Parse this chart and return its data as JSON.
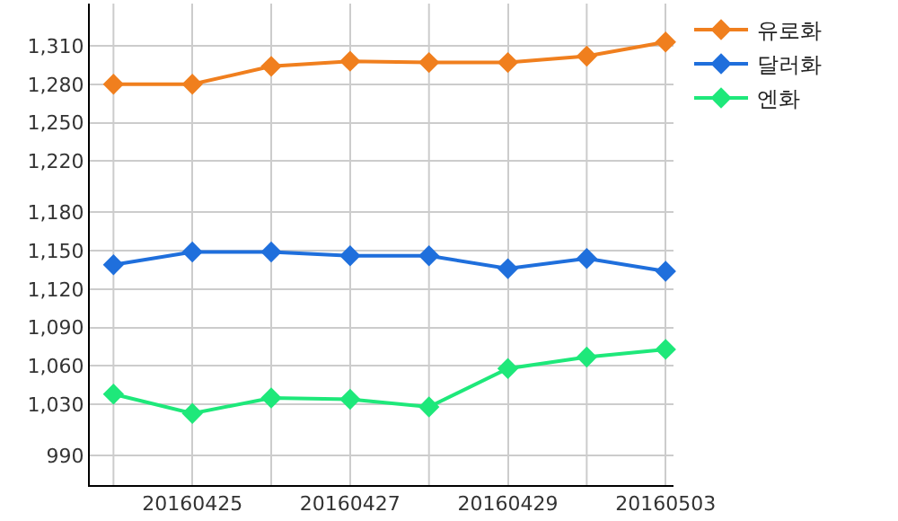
{
  "chart_data": {
    "type": "line",
    "categories": [
      null,
      "20160425",
      null,
      "20160427",
      null,
      "20160429",
      null,
      "20160503"
    ],
    "series": [
      {
        "name": "유로화",
        "color": "#f07f1e",
        "values": [
          1280,
          1280,
          1294,
          1298,
          1297,
          1297,
          1302,
          1313
        ]
      },
      {
        "name": "달러화",
        "color": "#1f6fdc",
        "values": [
          1139,
          1149,
          1149,
          1146,
          1146,
          1136,
          1144,
          1134
        ]
      },
      {
        "name": "엔화",
        "color": "#1ee87a",
        "values": [
          1038,
          1023,
          1035,
          1034,
          1028,
          1058,
          1067,
          1073
        ]
      }
    ],
    "ylim": [
      967,
      1343
    ],
    "yticks": [
      990,
      {
        "value": 1030,
        "label": "1,030"
      },
      {
        "value": 1060,
        "label": "1,060"
      },
      {
        "value": 1090,
        "label": "1,090"
      },
      {
        "value": 1120,
        "label": "1,120"
      },
      {
        "value": 1150,
        "label": "1,150"
      },
      {
        "value": 1180,
        "label": "1,180"
      },
      {
        "value": 1220,
        "label": "1,220"
      },
      {
        "value": 1250,
        "label": "1,250"
      },
      {
        "value": 1280,
        "label": "1,280"
      },
      {
        "value": 1310,
        "label": "1,310"
      }
    ],
    "grid": true,
    "legend": "top right",
    "marker": "diamond",
    "line_style": "solid"
  }
}
